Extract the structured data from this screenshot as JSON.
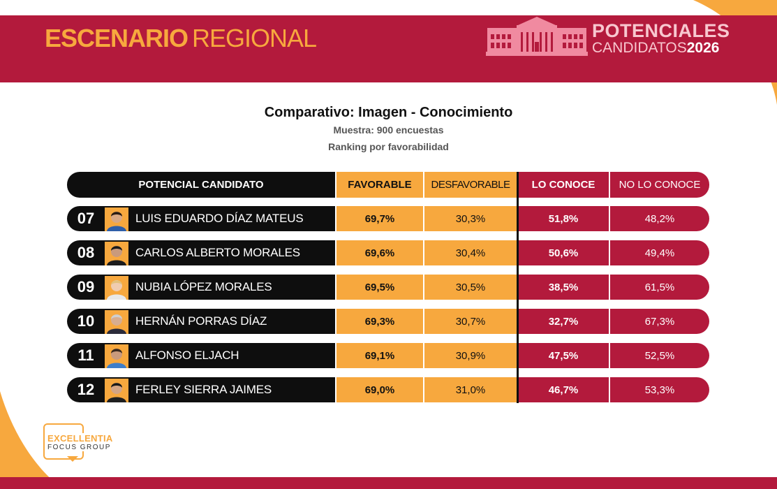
{
  "header": {
    "scenario_bold": "ESCENARIO",
    "scenario_light": "REGIONAL",
    "potenciales": "POTENCIALES",
    "candidatos": "CANDIDATOS",
    "year": "2026"
  },
  "titles": {
    "main": "Comparativo: Imagen - Conocimiento",
    "sample": "Muestra: 900 encuestas",
    "ranking": "Ranking por favorabilidad"
  },
  "chart_data": {
    "type": "table",
    "columns": [
      "POTENCIAL CANDIDATO",
      "FAVORABLE",
      "DESFAVORABLE",
      "LO CONOCE",
      "NO LO CONOCE"
    ],
    "rows": [
      {
        "rank": "07",
        "name": "LUIS EDUARDO DÍAZ MATEUS",
        "favorable": "69,7%",
        "desfavorable": "30,3%",
        "lo_conoce": "51,8%",
        "no_lo_conoce": "48,2%"
      },
      {
        "rank": "08",
        "name": "CARLOS ALBERTO MORALES",
        "favorable": "69,6%",
        "desfavorable": "30,4%",
        "lo_conoce": "50,6%",
        "no_lo_conoce": "49,4%"
      },
      {
        "rank": "09",
        "name": "NUBIA LÓPEZ MORALES",
        "favorable": "69,5%",
        "desfavorable": "30,5%",
        "lo_conoce": "38,5%",
        "no_lo_conoce": "61,5%"
      },
      {
        "rank": "10",
        "name": "HERNÁN PORRAS DÍAZ",
        "favorable": "69,3%",
        "desfavorable": "30,7%",
        "lo_conoce": "32,7%",
        "no_lo_conoce": "67,3%"
      },
      {
        "rank": "11",
        "name": "ALFONSO ELJACH",
        "favorable": "69,1%",
        "desfavorable": "30,9%",
        "lo_conoce": "47,5%",
        "no_lo_conoce": "52,5%"
      },
      {
        "rank": "12",
        "name": "FERLEY SIERRA JAIMES",
        "favorable": "69,0%",
        "desfavorable": "31,0%",
        "lo_conoce": "46,7%",
        "no_lo_conoce": "53,3%"
      }
    ]
  },
  "logo": {
    "line1": "EXCELLENTIA",
    "line2": "FOCUS GROUP"
  },
  "colors": {
    "crimson": "#b31a3c",
    "orange": "#f7a83e",
    "black": "#0e0e0e"
  }
}
